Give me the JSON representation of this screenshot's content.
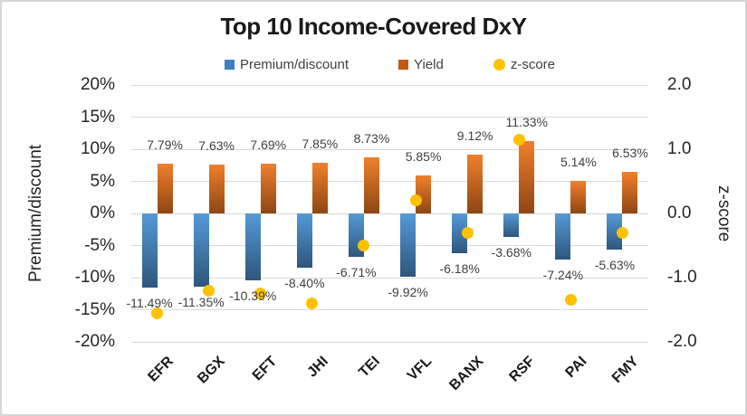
{
  "title": "Top 10 Income-Covered DxY",
  "legend": [
    {
      "label": "Premium/discount",
      "marker": "square",
      "color": "#3e81be"
    },
    {
      "label": "Yield",
      "marker": "square",
      "color": "#c45911"
    },
    {
      "label": "z-score",
      "marker": "circle",
      "color": "#ffc000"
    }
  ],
  "axes": {
    "left": {
      "title": "Premium/discount",
      "ticks": [
        "20%",
        "15%",
        "10%",
        "5%",
        "0%",
        "-5%",
        "-10%",
        "-15%",
        "-20%"
      ]
    },
    "right": {
      "title": "z-score",
      "ticks": [
        "2.0",
        "1.0",
        "0.0",
        "-1.0",
        "-2.0"
      ]
    }
  },
  "chart_data": {
    "type": "bar",
    "subtype": "combo-bar-scatter",
    "title": "Top 10 Income-Covered DxY",
    "categories": [
      "EFR",
      "BGX",
      "EFT",
      "JHI",
      "TEI",
      "VFL",
      "BANX",
      "RSF",
      "PAI",
      "FMY"
    ],
    "series": [
      {
        "name": "Premium/discount",
        "type": "bar",
        "axis": "left",
        "values": [
          -11.49,
          -11.35,
          -10.39,
          -8.4,
          -6.71,
          -9.92,
          -6.18,
          -3.68,
          -7.24,
          -5.63
        ],
        "labels": [
          "-11.49%",
          "-11.35%",
          "-10.39%",
          "-8.40%",
          "-6.71%",
          "-9.92%",
          "-6.18%",
          "-3.68%",
          "-7.24%",
          "-5.63%"
        ],
        "color_top": "#549ad8",
        "color_bottom": "#2e567c"
      },
      {
        "name": "Yield",
        "type": "bar",
        "axis": "left",
        "values": [
          7.79,
          7.63,
          7.69,
          7.85,
          8.73,
          5.85,
          9.12,
          11.33,
          5.14,
          6.53
        ],
        "labels": [
          "7.79%",
          "7.63%",
          "7.69%",
          "7.85%",
          "8.73%",
          "5.85%",
          "9.12%",
          "11.33%",
          "5.14%",
          "6.53%"
        ],
        "color_top": "#f0802c",
        "color_bottom": "#8e4613"
      },
      {
        "name": "z-score",
        "type": "scatter",
        "axis": "right",
        "values": [
          -1.55,
          -1.2,
          -1.25,
          -1.4,
          -0.5,
          0.2,
          -0.3,
          1.15,
          -1.35,
          -0.3
        ],
        "color": "#ffc000"
      }
    ],
    "ylabel_left": "Premium/discount",
    "ylabel_right": "z-score",
    "left_axis_range": [
      -20,
      20
    ],
    "right_axis_range": [
      -2,
      2
    ],
    "left_axis_tick_step": 5,
    "right_axis_tick_step": 1,
    "grid": true,
    "legend_position": "top"
  }
}
